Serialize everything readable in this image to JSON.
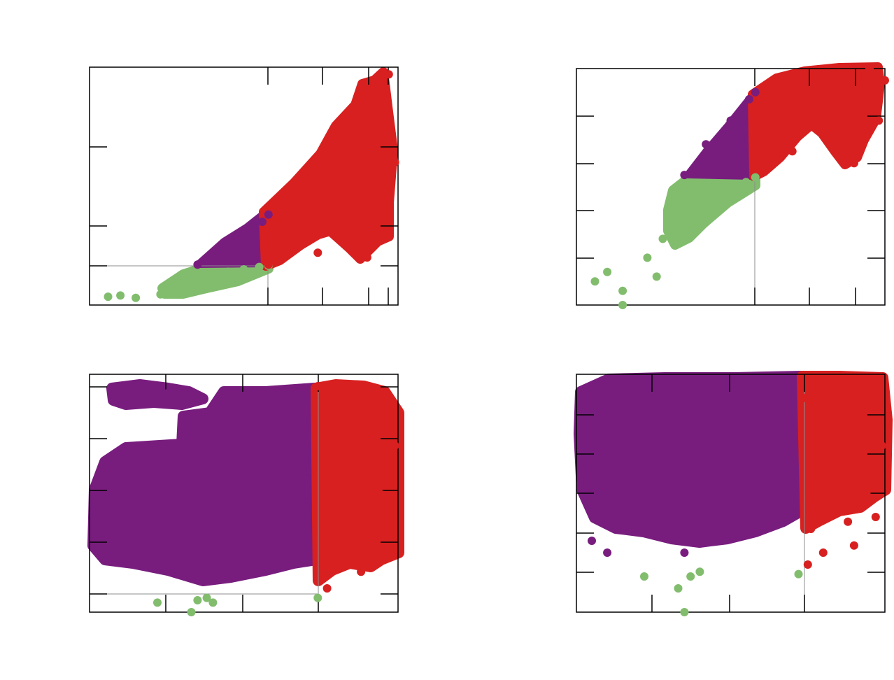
{
  "colors": {
    "green": "#82bd6e",
    "purple": "#781d7e",
    "red": "#d82020",
    "axis": "#000000",
    "guide": "#8c8c8c"
  },
  "legend": "none",
  "grid": false,
  "chart_data": [
    {
      "type": "scatter",
      "panel": "top-left",
      "title": "",
      "xlabel": "",
      "ylabel": "",
      "xlim": [
        0,
        1
      ],
      "ylim": [
        0,
        1
      ],
      "threshold_x": 0.58,
      "threshold_y": 0.165,
      "series": [
        {
          "color_key": "green",
          "points": [
            [
              0.06,
              0.035
            ],
            [
              0.1,
              0.04
            ],
            [
              0.15,
              0.03
            ],
            [
              0.23,
              0.045
            ],
            [
              0.26,
              0.09
            ],
            [
              0.3,
              0.1
            ],
            [
              0.35,
              0.12
            ],
            [
              0.4,
              0.13
            ],
            [
              0.45,
              0.14
            ],
            [
              0.5,
              0.15
            ],
            [
              0.55,
              0.16
            ],
            [
              0.58,
              0.165
            ]
          ]
        },
        {
          "color_key": "purple",
          "points": [
            [
              0.35,
              0.17
            ],
            [
              0.42,
              0.22
            ],
            [
              0.5,
              0.29
            ],
            [
              0.56,
              0.35
            ],
            [
              0.58,
              0.38
            ]
          ]
        },
        {
          "color_key": "red",
          "points": [
            [
              0.58,
              0.17
            ],
            [
              0.64,
              0.28
            ],
            [
              0.72,
              0.38
            ],
            [
              0.8,
              0.5
            ],
            [
              0.88,
              0.62
            ],
            [
              0.9,
              0.8
            ],
            [
              0.93,
              0.95
            ],
            [
              0.97,
              0.97
            ],
            [
              0.99,
              0.6
            ],
            [
              0.9,
              0.2
            ],
            [
              0.8,
              0.3
            ],
            [
              0.74,
              0.22
            ]
          ]
        }
      ]
    },
    {
      "type": "scatter",
      "panel": "top-right",
      "title": "",
      "xlabel": "",
      "ylabel": "",
      "xlim": [
        0,
        1
      ],
      "ylim": [
        0,
        1
      ],
      "threshold_x": 0.58,
      "series": [
        {
          "color_key": "green",
          "points": [
            [
              0.06,
              0.1
            ],
            [
              0.1,
              0.14
            ],
            [
              0.15,
              0.06
            ],
            [
              0.15,
              0.0
            ],
            [
              0.23,
              0.2
            ],
            [
              0.26,
              0.12
            ],
            [
              0.28,
              0.28
            ],
            [
              0.32,
              0.35
            ],
            [
              0.34,
              0.5
            ],
            [
              0.4,
              0.5
            ],
            [
              0.48,
              0.45
            ],
            [
              0.55,
              0.52
            ],
            [
              0.58,
              0.54
            ]
          ]
        },
        {
          "color_key": "purple",
          "points": [
            [
              0.35,
              0.55
            ],
            [
              0.42,
              0.68
            ],
            [
              0.5,
              0.78
            ],
            [
              0.56,
              0.87
            ],
            [
              0.58,
              0.9
            ]
          ]
        },
        {
          "color_key": "red",
          "points": [
            [
              0.58,
              0.58
            ],
            [
              0.65,
              0.75
            ],
            [
              0.75,
              0.9
            ],
            [
              0.85,
              0.98
            ],
            [
              0.95,
              1.0
            ],
            [
              1.0,
              0.95
            ],
            [
              0.98,
              0.78
            ],
            [
              0.9,
              0.6
            ],
            [
              0.86,
              0.62
            ],
            [
              0.78,
              0.8
            ],
            [
              0.7,
              0.65
            ]
          ]
        }
      ]
    },
    {
      "type": "scatter",
      "panel": "bottom-left",
      "title": "",
      "xlabel": "",
      "ylabel": "",
      "xlim": [
        0,
        1
      ],
      "ylim": [
        0,
        1
      ],
      "threshold_x": 0.73,
      "threshold_y": 0.075,
      "series": [
        {
          "color_key": "green",
          "points": [
            [
              0.22,
              0.04
            ],
            [
              0.33,
              0.0
            ],
            [
              0.35,
              0.05
            ],
            [
              0.38,
              0.06
            ],
            [
              0.4,
              0.04
            ],
            [
              0.74,
              0.06
            ]
          ]
        },
        {
          "color_key": "purple",
          "points": [
            [
              0.05,
              0.45
            ],
            [
              0.1,
              0.3
            ],
            [
              0.15,
              0.6
            ],
            [
              0.2,
              0.25
            ],
            [
              0.25,
              0.55
            ],
            [
              0.3,
              0.2
            ],
            [
              0.35,
              0.7
            ],
            [
              0.4,
              0.4
            ],
            [
              0.45,
              0.3
            ],
            [
              0.5,
              0.75
            ],
            [
              0.55,
              0.35
            ],
            [
              0.6,
              0.9
            ],
            [
              0.65,
              0.5
            ],
            [
              0.7,
              0.28
            ],
            [
              0.1,
              0.93
            ],
            [
              0.25,
              0.92
            ]
          ]
        },
        {
          "color_key": "red",
          "points": [
            [
              0.74,
              0.95
            ],
            [
              0.76,
              0.4
            ],
            [
              0.8,
              0.2
            ],
            [
              0.84,
              0.7
            ],
            [
              0.88,
              0.3
            ],
            [
              0.9,
              0.85
            ],
            [
              0.94,
              0.5
            ],
            [
              0.97,
              0.25
            ],
            [
              0.99,
              0.7
            ],
            [
              0.77,
              0.1
            ],
            [
              0.88,
              0.17
            ]
          ]
        }
      ]
    },
    {
      "type": "scatter",
      "panel": "bottom-right",
      "title": "",
      "xlabel": "",
      "ylabel": "",
      "xlim": [
        0,
        1
      ],
      "ylim": [
        0,
        1
      ],
      "threshold_x": 0.72,
      "series": [
        {
          "color_key": "green",
          "points": [
            [
              0.22,
              0.15
            ],
            [
              0.33,
              0.1
            ],
            [
              0.35,
              0.0
            ],
            [
              0.37,
              0.15
            ],
            [
              0.4,
              0.17
            ],
            [
              0.72,
              0.16
            ]
          ]
        },
        {
          "color_key": "purple",
          "points": [
            [
              0.05,
              0.3
            ],
            [
              0.1,
              0.25
            ],
            [
              0.15,
              0.7
            ],
            [
              0.2,
              0.35
            ],
            [
              0.25,
              0.8
            ],
            [
              0.3,
              0.45
            ],
            [
              0.35,
              0.25
            ],
            [
              0.4,
              0.6
            ],
            [
              0.45,
              0.35
            ],
            [
              0.5,
              0.9
            ],
            [
              0.55,
              0.5
            ],
            [
              0.6,
              0.38
            ],
            [
              0.65,
              0.7
            ],
            [
              0.7,
              0.4
            ],
            [
              0.02,
              0.8
            ]
          ]
        },
        {
          "color_key": "red",
          "points": [
            [
              0.74,
              0.9
            ],
            [
              0.76,
              0.35
            ],
            [
              0.8,
              0.25
            ],
            [
              0.84,
              0.65
            ],
            [
              0.88,
              0.38
            ],
            [
              0.9,
              0.28
            ],
            [
              0.94,
              0.5
            ],
            [
              0.97,
              0.4
            ],
            [
              0.99,
              0.7
            ],
            [
              0.75,
              0.2
            ]
          ]
        }
      ]
    }
  ]
}
